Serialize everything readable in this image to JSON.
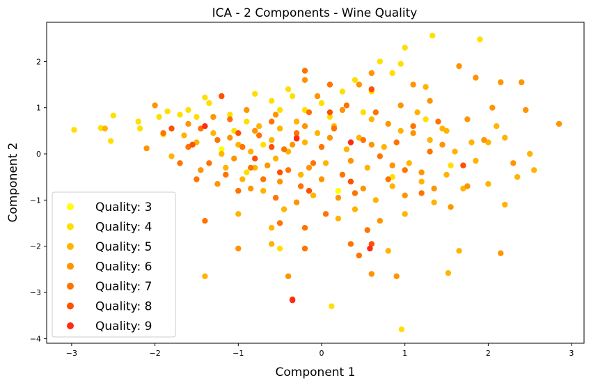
{
  "chart_data": {
    "type": "scatter",
    "title": "ICA - 2 Components - Wine Quality",
    "xlabel": "Component 1",
    "ylabel": "Component 2",
    "xlim": [
      -3.3,
      3.15
    ],
    "ylim": [
      -4.1,
      2.85
    ],
    "xticks": [
      -3,
      -2,
      -1,
      0,
      1,
      2,
      3
    ],
    "yticks": [
      -4,
      -3,
      -2,
      -1,
      0,
      1,
      2
    ],
    "grid": false,
    "legend_position": "lower-left",
    "series": [
      {
        "name": "Quality: 3",
        "color": "#ffff00",
        "points": [
          [
            -1.2,
            0.1
          ],
          [
            0.2,
            -0.8
          ]
        ]
      },
      {
        "name": "Quality: 4",
        "color": "#ffdf00",
        "points": [
          [
            -2.97,
            0.52
          ],
          [
            -2.65,
            0.56
          ],
          [
            -2.5,
            0.83
          ],
          [
            -2.53,
            0.28
          ],
          [
            -2.2,
            0.7
          ],
          [
            -2.18,
            0.55
          ],
          [
            -1.9,
            0.42
          ],
          [
            -1.85,
            0.92
          ],
          [
            -1.95,
            0.8
          ],
          [
            -1.7,
            0.85
          ],
          [
            -1.6,
            0.95
          ],
          [
            -1.5,
            0.8
          ],
          [
            -1.4,
            1.22
          ],
          [
            -1.35,
            1.1
          ],
          [
            -1.2,
            1.25
          ],
          [
            -1.1,
            0.85
          ],
          [
            -1.05,
            0.5
          ],
          [
            -0.9,
            0.7
          ],
          [
            -0.8,
            1.3
          ],
          [
            -0.6,
            1.15
          ],
          [
            -0.5,
            0.95
          ],
          [
            -0.4,
            1.4
          ],
          [
            -0.35,
            1.25
          ],
          [
            -0.2,
            0.95
          ],
          [
            0.0,
            1.1
          ],
          [
            0.1,
            0.8
          ],
          [
            0.25,
            1.35
          ],
          [
            0.4,
            1.6
          ],
          [
            0.5,
            0.9
          ],
          [
            0.6,
            1.35
          ],
          [
            0.7,
            2.0
          ],
          [
            0.85,
            1.75
          ],
          [
            0.95,
            1.95
          ],
          [
            1.0,
            2.3
          ],
          [
            1.25,
            0.75
          ],
          [
            1.33,
            2.56
          ],
          [
            1.9,
            2.48
          ],
          [
            -0.9,
            -0.4
          ],
          [
            -0.5,
            -2.05
          ],
          [
            0.12,
            -3.3
          ],
          [
            0.96,
            -3.8
          ],
          [
            1.55,
            -0.25
          ],
          [
            0.85,
            -0.5
          ],
          [
            -0.7,
            0.2
          ]
        ]
      },
      {
        "name": "Quality: 5",
        "color": "#ffb400",
        "points": [
          [
            -2.6,
            0.55
          ],
          [
            -1.8,
            -0.05
          ],
          [
            -1.65,
            0.4
          ],
          [
            -1.5,
            0.25
          ],
          [
            -1.3,
            0.45
          ],
          [
            -1.2,
            0.0
          ],
          [
            -1.15,
            -0.3
          ],
          [
            -1.0,
            0.2
          ],
          [
            -0.95,
            -0.55
          ],
          [
            -0.85,
            0.05
          ],
          [
            -0.8,
            -0.3
          ],
          [
            -0.75,
            0.6
          ],
          [
            -0.7,
            -0.8
          ],
          [
            -0.6,
            0.3
          ],
          [
            -0.55,
            -0.1
          ],
          [
            -0.5,
            0.55
          ],
          [
            -0.45,
            -1.2
          ],
          [
            -0.4,
            0.05
          ],
          [
            -0.3,
            0.7
          ],
          [
            -0.25,
            -0.45
          ],
          [
            -0.2,
            0.25
          ],
          [
            -0.1,
            -0.9
          ],
          [
            -0.05,
            0.45
          ],
          [
            0.05,
            -0.2
          ],
          [
            0.15,
            0.6
          ],
          [
            0.2,
            -1.4
          ],
          [
            0.3,
            0.1
          ],
          [
            0.35,
            -0.6
          ],
          [
            0.45,
            0.35
          ],
          [
            0.55,
            -0.3
          ],
          [
            0.6,
            0.75
          ],
          [
            0.65,
            -1.0
          ],
          [
            0.75,
            0.15
          ],
          [
            0.85,
            -0.7
          ],
          [
            0.95,
            0.5
          ],
          [
            1.0,
            -1.3
          ],
          [
            1.05,
            -0.2
          ],
          [
            1.15,
            0.9
          ],
          [
            1.2,
            -0.6
          ],
          [
            1.3,
            0.3
          ],
          [
            1.35,
            -1.05
          ],
          [
            1.45,
            0.55
          ],
          [
            1.5,
            -0.45
          ],
          [
            1.6,
            0.05
          ],
          [
            1.7,
            -0.75
          ],
          [
            1.8,
            0.25
          ],
          [
            1.85,
            -0.15
          ],
          [
            2.0,
            -0.65
          ],
          [
            2.1,
            0.6
          ],
          [
            2.2,
            -1.1
          ],
          [
            2.35,
            -0.5
          ],
          [
            2.5,
            0.0
          ],
          [
            2.55,
            -0.35
          ],
          [
            1.65,
            -2.1
          ],
          [
            1.52,
            -2.58
          ],
          [
            -0.6,
            -1.6
          ],
          [
            -1.4,
            -2.65
          ],
          [
            -0.6,
            -1.95
          ],
          [
            0.4,
            -1.2
          ],
          [
            0.8,
            -2.1
          ],
          [
            1.25,
            1.45
          ],
          [
            1.5,
            0.5
          ],
          [
            2.0,
            0.25
          ],
          [
            2.2,
            0.35
          ],
          [
            -1.0,
            -1.3
          ]
        ]
      },
      {
        "name": "Quality: 6",
        "color": "#ff9400",
        "points": [
          [
            -2.1,
            0.12
          ],
          [
            -2.0,
            1.05
          ],
          [
            -1.6,
            0.65
          ],
          [
            -1.45,
            -0.35
          ],
          [
            -1.3,
            0.8
          ],
          [
            -1.25,
            -0.65
          ],
          [
            -1.1,
            0.35
          ],
          [
            -1.05,
            -0.1
          ],
          [
            -0.9,
            0.95
          ],
          [
            -0.85,
            -0.75
          ],
          [
            -0.8,
            0.5
          ],
          [
            -0.65,
            -0.25
          ],
          [
            -0.55,
            0.85
          ],
          [
            -0.5,
            -0.6
          ],
          [
            -0.35,
            0.2
          ],
          [
            -0.3,
            -1.05
          ],
          [
            -0.2,
            0.6
          ],
          [
            -0.15,
            -0.3
          ],
          [
            -0.05,
            1.25
          ],
          [
            0.0,
            -0.55
          ],
          [
            0.1,
            0.35
          ],
          [
            0.2,
            -0.95
          ],
          [
            0.25,
            0.95
          ],
          [
            0.35,
            -0.15
          ],
          [
            0.45,
            1.5
          ],
          [
            0.5,
            -0.75
          ],
          [
            0.6,
            0.2
          ],
          [
            0.7,
            -1.45
          ],
          [
            0.8,
            0.65
          ],
          [
            0.85,
            -0.25
          ],
          [
            0.95,
            1.05
          ],
          [
            1.0,
            -0.9
          ],
          [
            1.1,
            0.45
          ],
          [
            1.2,
            -0.4
          ],
          [
            1.3,
            1.15
          ],
          [
            1.35,
            -0.75
          ],
          [
            1.45,
            0.2
          ],
          [
            1.55,
            -1.15
          ],
          [
            1.65,
            1.9
          ],
          [
            1.75,
            0.75
          ],
          [
            1.85,
            1.65
          ],
          [
            1.95,
            0.3
          ],
          [
            2.05,
            1.0
          ],
          [
            2.15,
            1.55
          ],
          [
            2.3,
            -0.2
          ],
          [
            2.4,
            1.55
          ],
          [
            2.45,
            0.95
          ],
          [
            2.85,
            0.65
          ],
          [
            1.75,
            -0.7
          ],
          [
            2.15,
            -2.15
          ],
          [
            0.9,
            -2.65
          ],
          [
            0.6,
            -2.6
          ],
          [
            -0.4,
            -2.65
          ],
          [
            -1.0,
            -2.05
          ],
          [
            1.1,
            1.5
          ],
          [
            0.6,
            1.75
          ],
          [
            -0.2,
            1.6
          ]
        ]
      },
      {
        "name": "Quality: 7",
        "color": "#ff7300",
        "points": [
          [
            -1.9,
            0.45
          ],
          [
            -1.7,
            -0.2
          ],
          [
            -1.6,
            0.15
          ],
          [
            -1.5,
            -0.55
          ],
          [
            -1.45,
            0.55
          ],
          [
            -1.35,
            -0.2
          ],
          [
            -1.25,
            0.3
          ],
          [
            -1.15,
            -0.45
          ],
          [
            -1.1,
            0.75
          ],
          [
            -1.0,
            -0.8
          ],
          [
            -0.95,
            0.15
          ],
          [
            -0.85,
            -0.3
          ],
          [
            -0.75,
            0.4
          ],
          [
            -0.7,
            -0.55
          ],
          [
            -0.6,
            0.7
          ],
          [
            -0.55,
            -0.95
          ],
          [
            -0.45,
            0.1
          ],
          [
            -0.4,
            -0.35
          ],
          [
            -0.3,
            0.45
          ],
          [
            -0.25,
            -0.7
          ],
          [
            -0.15,
            0.9
          ],
          [
            -0.1,
            -0.2
          ],
          [
            0.0,
            0.15
          ],
          [
            0.05,
            -1.3
          ],
          [
            0.15,
            0.55
          ],
          [
            0.25,
            -0.45
          ],
          [
            0.3,
            1.05
          ],
          [
            0.4,
            -0.85
          ],
          [
            0.5,
            0.3
          ],
          [
            0.55,
            -1.65
          ],
          [
            0.65,
            0.9
          ],
          [
            0.7,
            -0.05
          ],
          [
            0.8,
            -0.55
          ],
          [
            0.9,
            0.25
          ],
          [
            1.0,
            -0.35
          ],
          [
            1.1,
            0.6
          ],
          [
            1.2,
            -0.85
          ],
          [
            1.3,
            0.05
          ],
          [
            -1.4,
            -1.45
          ],
          [
            -0.5,
            -1.5
          ],
          [
            -0.2,
            -1.6
          ],
          [
            -0.2,
            -2.05
          ],
          [
            0.45,
            -2.2
          ],
          [
            0.1,
            1.5
          ],
          [
            -0.2,
            1.8
          ],
          [
            1.4,
            0.7
          ],
          [
            0.35,
            -1.95
          ]
        ]
      },
      {
        "name": "Quality: 8",
        "color": "#ff5000",
        "points": [
          [
            -1.8,
            0.55
          ],
          [
            -1.55,
            0.2
          ],
          [
            -1.2,
            1.25
          ],
          [
            -1.0,
            0.45
          ],
          [
            -0.8,
            -0.1
          ],
          [
            -0.5,
            -0.4
          ],
          [
            -0.3,
            0.35
          ],
          [
            -0.15,
            -0.8
          ],
          [
            0.1,
            0.9
          ],
          [
            0.35,
            -0.6
          ],
          [
            0.6,
            1.4
          ],
          [
            0.6,
            -1.95
          ],
          [
            1.7,
            -0.25
          ],
          [
            -0.35,
            -3.15
          ],
          [
            -0.6,
            0.15
          ]
        ]
      },
      {
        "name": "Quality: 9",
        "color": "#ff2b14",
        "points": [
          [
            -1.4,
            0.6
          ],
          [
            -0.3,
            0.33
          ],
          [
            0.35,
            0.25
          ],
          [
            0.58,
            -2.05
          ],
          [
            -0.35,
            -3.17
          ]
        ]
      }
    ]
  }
}
